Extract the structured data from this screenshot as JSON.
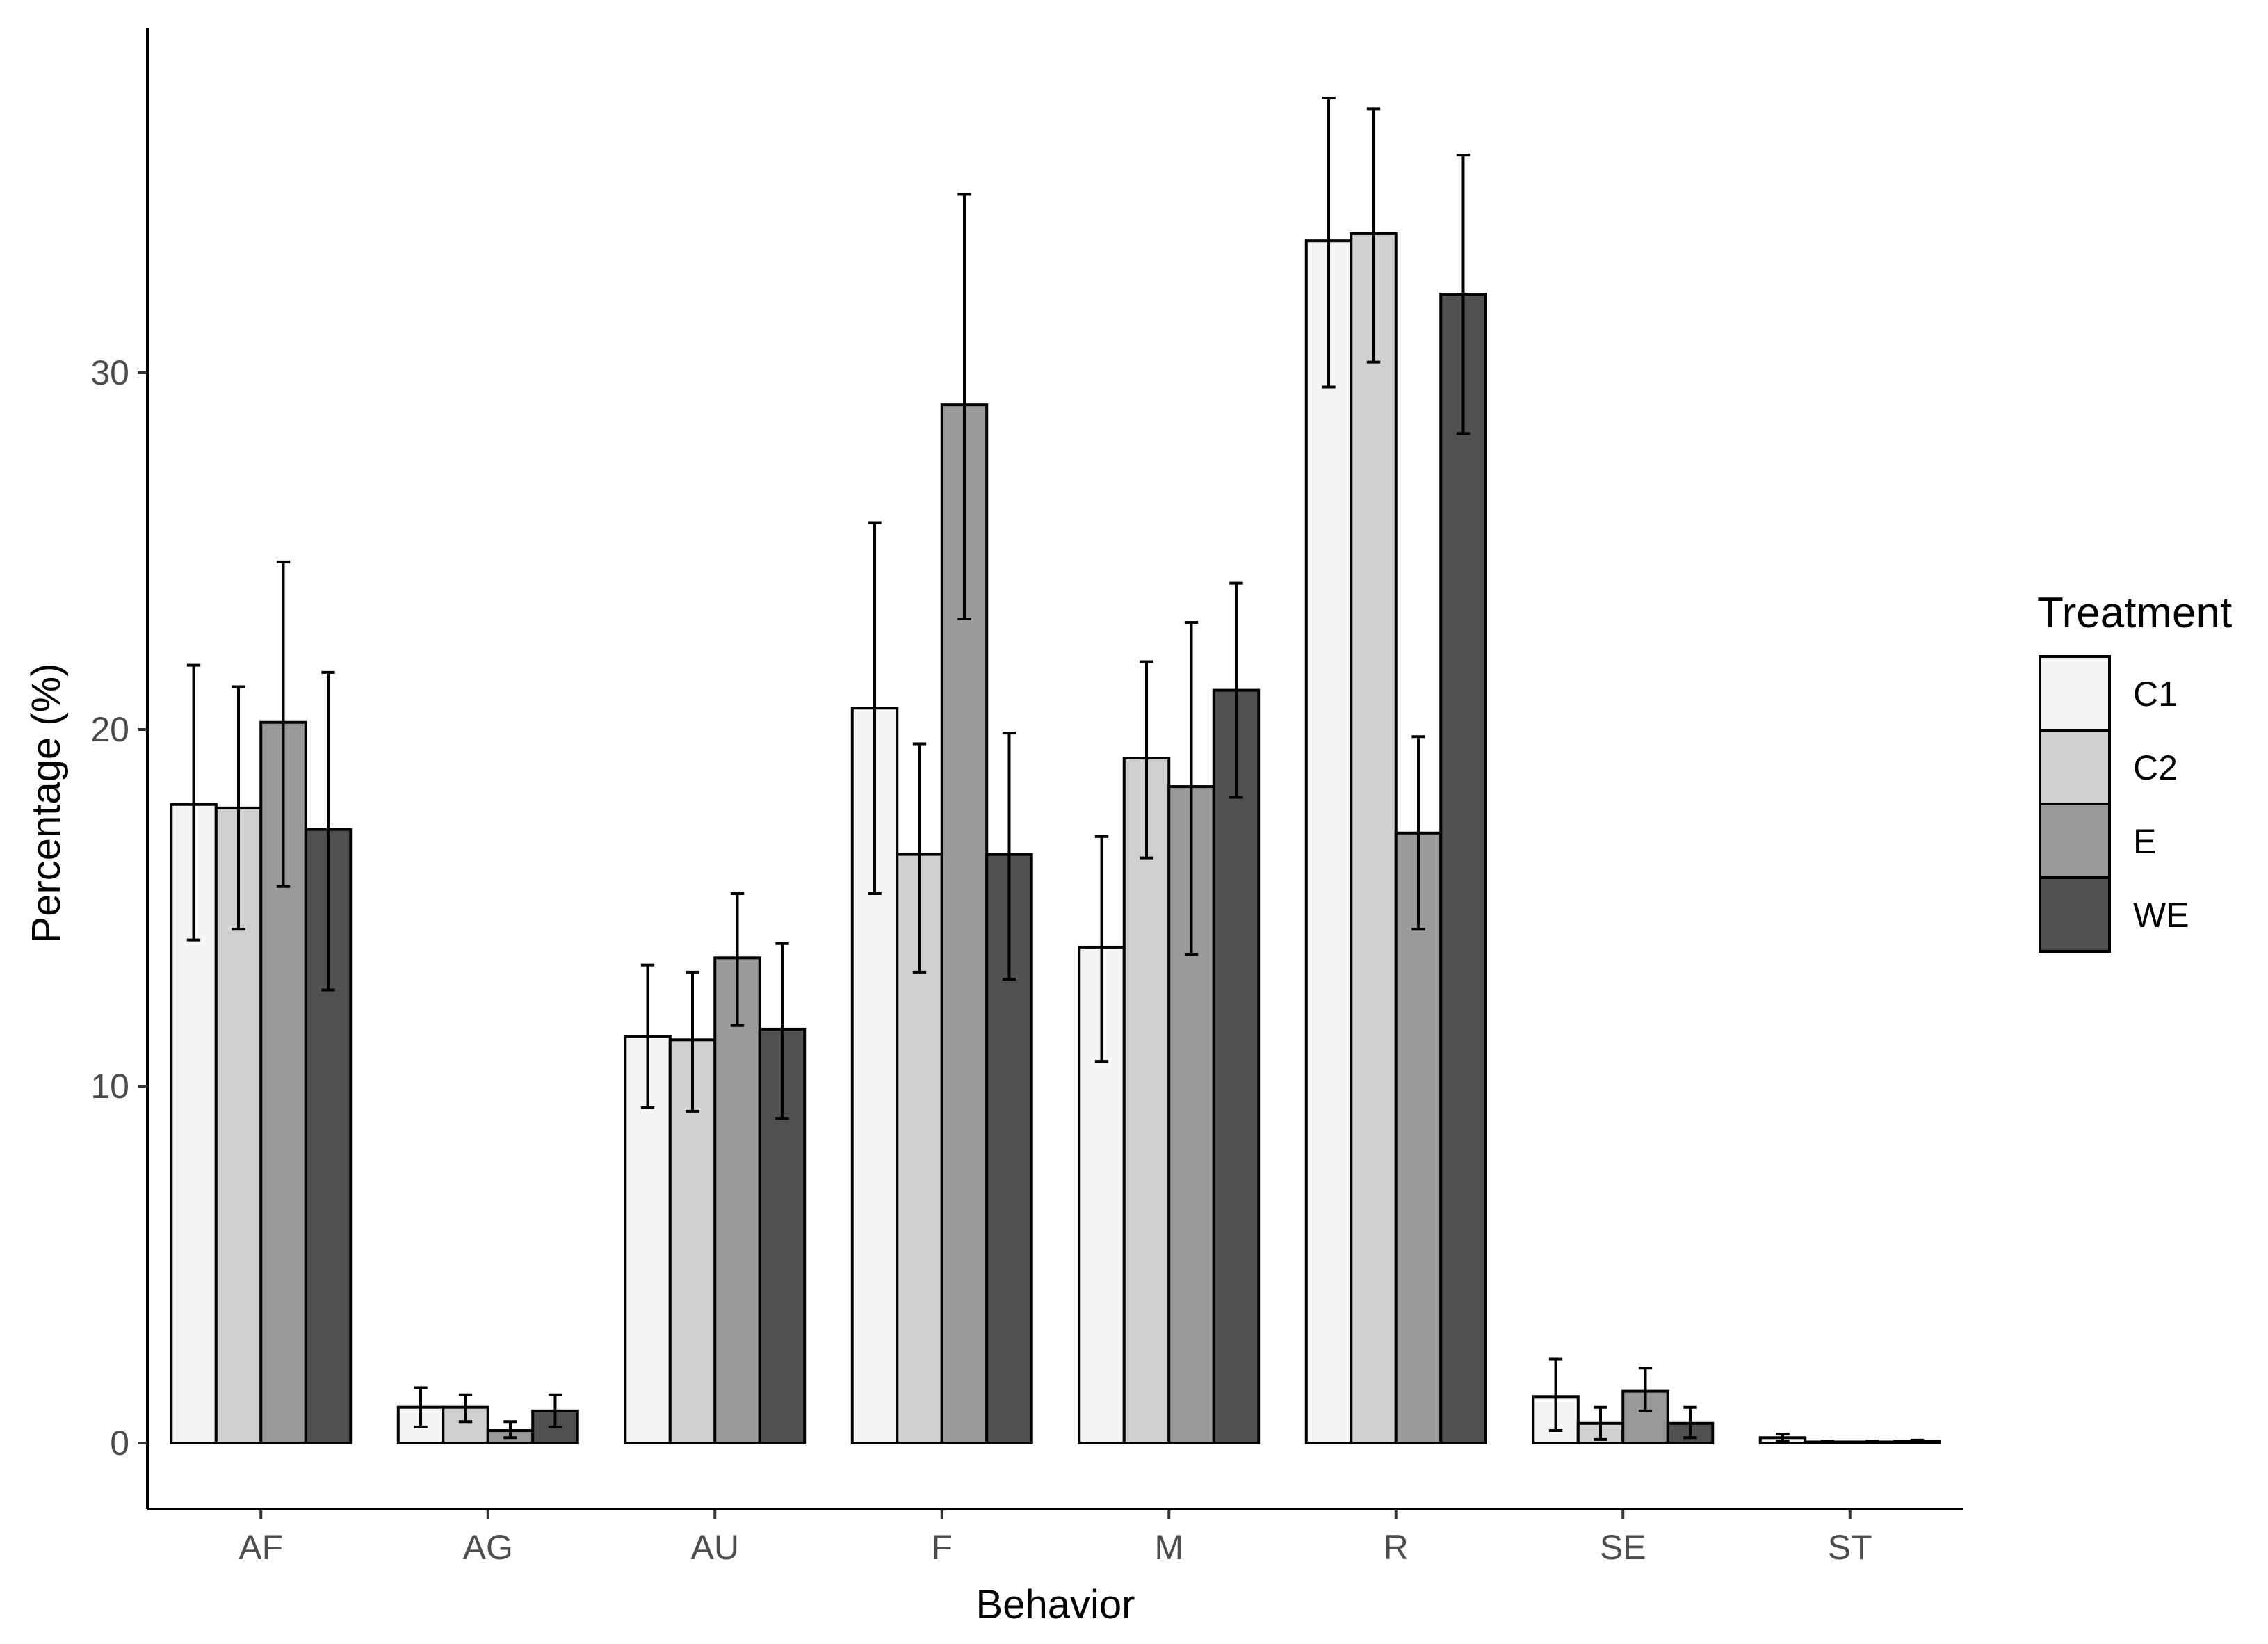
{
  "chart_data": {
    "type": "bar",
    "xlabel": "Behavior",
    "ylabel": "Percentage (%)",
    "ylim": [
      -1.8,
      39.5
    ],
    "yticks": [
      0,
      10,
      20,
      30
    ],
    "grid": false,
    "legend_position": "right",
    "legend_title": "Treatment",
    "categories": [
      "AF",
      "AG",
      "AU",
      "F",
      "M",
      "R",
      "SE",
      "ST"
    ],
    "series": [
      {
        "name": "C1",
        "color": "#f5f5f5",
        "values": [
          17.9,
          1.0,
          11.4,
          20.6,
          13.9,
          33.7,
          1.3,
          0.15
        ],
        "err_low": [
          14.1,
          0.45,
          9.4,
          15.4,
          10.7,
          29.6,
          0.35,
          0.05
        ],
        "err_high": [
          21.8,
          1.55,
          13.4,
          25.8,
          17.0,
          37.7,
          2.35,
          0.25
        ]
      },
      {
        "name": "C2",
        "color": "#d0d0d0",
        "values": [
          17.8,
          1.0,
          11.3,
          16.5,
          19.2,
          33.9,
          0.55,
          0.03
        ],
        "err_low": [
          14.4,
          0.6,
          9.3,
          13.2,
          16.4,
          30.3,
          0.1,
          0.01
        ],
        "err_high": [
          21.2,
          1.35,
          13.2,
          19.6,
          21.9,
          37.4,
          1.0,
          0.05
        ]
      },
      {
        "name": "E",
        "color": "#9a9a9a",
        "values": [
          20.2,
          0.35,
          13.6,
          29.1,
          18.4,
          17.1,
          1.45,
          0.03
        ],
        "err_low": [
          15.6,
          0.15,
          11.7,
          23.1,
          13.7,
          14.4,
          0.9,
          0.01
        ],
        "err_high": [
          24.7,
          0.6,
          15.4,
          35.0,
          23.0,
          19.8,
          2.1,
          0.05
        ]
      },
      {
        "name": "WE",
        "color": "#505050",
        "values": [
          17.2,
          0.9,
          11.6,
          16.5,
          21.1,
          32.2,
          0.55,
          0.05
        ],
        "err_low": [
          12.7,
          0.45,
          9.1,
          13.0,
          18.1,
          28.3,
          0.15,
          0.02
        ],
        "err_high": [
          21.6,
          1.35,
          14.0,
          19.9,
          24.1,
          36.1,
          1.0,
          0.08
        ]
      }
    ]
  }
}
